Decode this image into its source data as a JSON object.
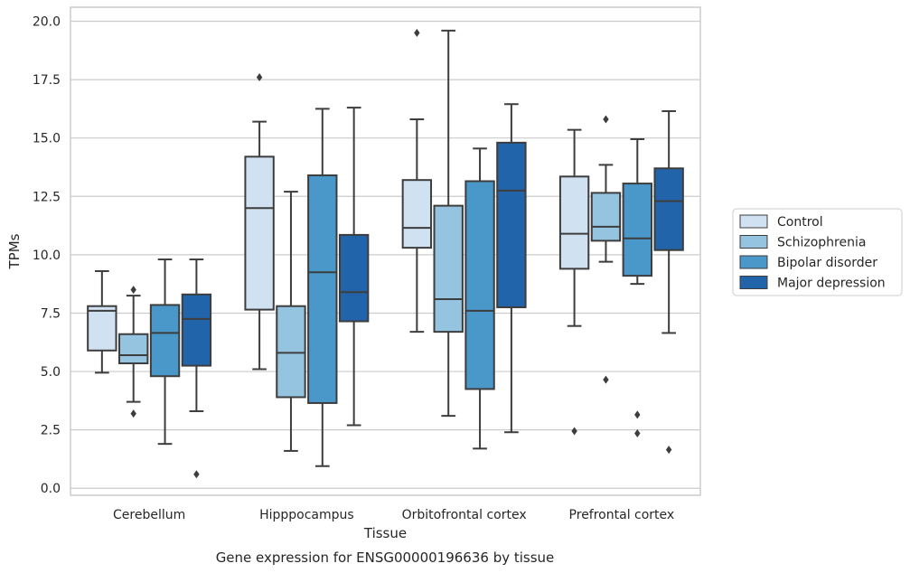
{
  "chart_data": {
    "type": "box",
    "title": "",
    "caption": "Gene expression for ENSG00000196636 by tissue",
    "xlabel": "Tissue",
    "ylabel": "TPMs",
    "ylim": [
      -0.3,
      20.6
    ],
    "yticks": [
      "0.0",
      "2.5",
      "5.0",
      "7.5",
      "10.0",
      "12.5",
      "15.0",
      "17.5",
      "20.0"
    ],
    "ytick_values": [
      0,
      2.5,
      5,
      7.5,
      10,
      12.5,
      15,
      17.5,
      20
    ],
    "grid": "horizontal",
    "legend_position": "right",
    "categories": [
      "Cerebellum",
      "Hipppocampus",
      "Orbitofrontal cortex",
      "Prefrontal cortex"
    ],
    "series": [
      {
        "name": "Control",
        "color": "#d0e1f2",
        "boxes": [
          {
            "whislo": 4.95,
            "q1": 5.9,
            "med": 7.6,
            "q3": 7.8,
            "whishi": 9.3,
            "fliers": []
          },
          {
            "whislo": 5.1,
            "q1": 7.65,
            "med": 12.0,
            "q3": 14.2,
            "whishi": 15.7,
            "fliers": [
              17.6
            ]
          },
          {
            "whislo": 6.7,
            "q1": 10.3,
            "med": 11.15,
            "q3": 13.2,
            "whishi": 15.8,
            "fliers": [
              19.5
            ]
          },
          {
            "whislo": 6.95,
            "q1": 9.4,
            "med": 10.9,
            "q3": 13.35,
            "whishi": 15.35,
            "fliers": [
              2.45
            ]
          }
        ]
      },
      {
        "name": "Schizophrenia",
        "color": "#94c4df",
        "boxes": [
          {
            "whislo": 3.7,
            "q1": 5.35,
            "med": 5.7,
            "q3": 6.6,
            "whishi": 8.25,
            "fliers": [
              8.5,
              3.2
            ]
          },
          {
            "whislo": 1.6,
            "q1": 3.9,
            "med": 5.8,
            "q3": 7.8,
            "whishi": 12.7,
            "fliers": []
          },
          {
            "whislo": 3.1,
            "q1": 6.7,
            "med": 8.1,
            "q3": 12.1,
            "whishi": 19.6,
            "fliers": []
          },
          {
            "whislo": 9.7,
            "q1": 10.6,
            "med": 11.2,
            "q3": 12.65,
            "whishi": 13.85,
            "fliers": [
              15.8,
              4.65
            ]
          }
        ]
      },
      {
        "name": "Bipolar disorder",
        "color": "#4a98c9",
        "boxes": [
          {
            "whislo": 1.9,
            "q1": 4.8,
            "med": 6.65,
            "q3": 7.85,
            "whishi": 9.8,
            "fliers": []
          },
          {
            "whislo": 0.95,
            "q1": 3.65,
            "med": 9.25,
            "q3": 13.4,
            "whishi": 16.25,
            "fliers": []
          },
          {
            "whislo": 1.7,
            "q1": 4.25,
            "med": 7.6,
            "q3": 13.15,
            "whishi": 14.55,
            "fliers": []
          },
          {
            "whislo": 8.75,
            "q1": 9.1,
            "med": 10.7,
            "q3": 13.05,
            "whishi": 14.95,
            "fliers": [
              3.15,
              2.35
            ]
          }
        ]
      },
      {
        "name": "Major depression",
        "color": "#2264aa",
        "boxes": [
          {
            "whislo": 3.3,
            "q1": 5.25,
            "med": 7.25,
            "q3": 8.3,
            "whishi": 9.8,
            "fliers": [
              0.6
            ]
          },
          {
            "whislo": 2.7,
            "q1": 7.15,
            "med": 8.4,
            "q3": 10.85,
            "whishi": 16.3,
            "fliers": []
          },
          {
            "whislo": 2.4,
            "q1": 7.75,
            "med": 12.75,
            "q3": 14.8,
            "whishi": 16.45,
            "fliers": []
          },
          {
            "whislo": 6.65,
            "q1": 10.2,
            "med": 12.3,
            "q3": 13.7,
            "whishi": 16.15,
            "fliers": [
              1.65
            ]
          }
        ]
      }
    ]
  }
}
